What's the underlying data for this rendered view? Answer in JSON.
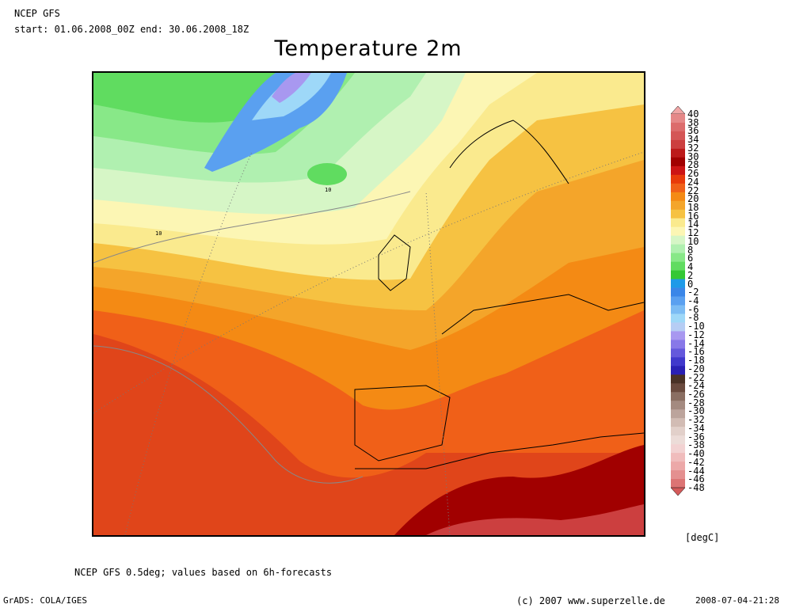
{
  "header": {
    "model": "NCEP GFS",
    "period": "start: 01.06.2008_00Z end: 30.06.2008_18Z"
  },
  "title": "Temperature 2m",
  "map": {
    "contour_labels": [
      "10",
      "10"
    ]
  },
  "colorbar": {
    "labels": [
      "40",
      "38",
      "36",
      "34",
      "32",
      "30",
      "28",
      "26",
      "24",
      "22",
      "20",
      "18",
      "16",
      "14",
      "12",
      "10",
      "8",
      "6",
      "4",
      "2",
      "0",
      "-2",
      "-4",
      "-6",
      "-8",
      "-10",
      "-12",
      "-14",
      "-16",
      "-18",
      "-20",
      "-22",
      "-24",
      "-26",
      "-28",
      "-30",
      "-32",
      "-34",
      "-36",
      "-38",
      "-40",
      "-42",
      "-44",
      "-46",
      "-48"
    ],
    "colors": [
      "#f1a6a6",
      "#e58888",
      "#dc6c6c",
      "#d45656",
      "#cc3f3f",
      "#bc1a1a",
      "#a10000",
      "#cc1414",
      "#e83a0a",
      "#f06018",
      "#f48a14",
      "#f4a52a",
      "#f6c242",
      "#faea8e",
      "#fcf6b4",
      "#d6f6c6",
      "#b0f0b0",
      "#88e888",
      "#60dc60",
      "#34c834",
      "#1e9ae8",
      "#3a86e8",
      "#5aa0f0",
      "#7cbcf4",
      "#9ed8f8",
      "#b6cdf4",
      "#a898f0",
      "#8878e8",
      "#6458dc",
      "#4038cc",
      "#2a20b4",
      "#4a3226",
      "#6a4a3e",
      "#8a6e62",
      "#a48a80",
      "#bca49c",
      "#d2bcb4",
      "#e2d0ca",
      "#ecdcd8",
      "#f2d2d2",
      "#f0bcbc",
      "#eca8a8",
      "#e49090",
      "#dc7474",
      "#d45a5a"
    ],
    "units": "[degC]"
  },
  "footer": {
    "note": "NCEP GFS 0.5deg; values based on 6h-forecasts",
    "software": "GrADS: COLA/IGES",
    "copyright": "(c) 2007 www.superzelle.de",
    "timestamp": "2008-07-04-21:28"
  }
}
